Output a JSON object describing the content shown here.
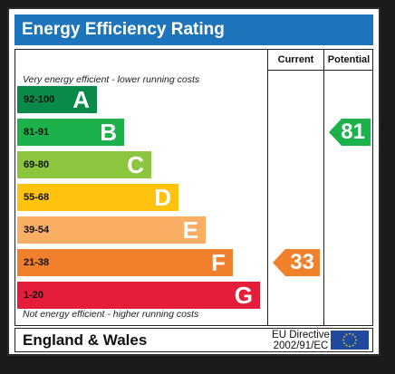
{
  "title": "Energy Efficiency Rating",
  "columns": {
    "current": "Current",
    "potential": "Potential"
  },
  "top_note": "Very energy efficient - lower running costs",
  "bottom_note": "Not energy efficient - higher running costs",
  "footer": {
    "region": "England & Wales",
    "directive_line1": "EU Directive",
    "directive_line2": "2002/91/EC"
  },
  "colors": {
    "title_bar": "#1e75bb",
    "A": "#0a8a4a",
    "B": "#1db14b",
    "C": "#8cc63f",
    "D": "#fec20f",
    "E": "#f9ae63",
    "F": "#f0802c",
    "G": "#e41e3a",
    "eu_flag": "#1f4a9e",
    "eu_stars": "#f7d117"
  },
  "chart_data": {
    "type": "bar",
    "title": "Energy Efficiency Rating",
    "categories": [
      "A",
      "B",
      "C",
      "D",
      "E",
      "F",
      "G"
    ],
    "ranges": [
      "92-100",
      "81-91",
      "69-80",
      "55-68",
      "39-54",
      "21-38",
      "1-20"
    ],
    "bands": [
      {
        "letter": "A",
        "range": "92-100"
      },
      {
        "letter": "B",
        "range": "81-91"
      },
      {
        "letter": "C",
        "range": "69-80"
      },
      {
        "letter": "D",
        "range": "55-68"
      },
      {
        "letter": "E",
        "range": "39-54"
      },
      {
        "letter": "F",
        "range": "21-38"
      },
      {
        "letter": "G",
        "range": "1-20"
      }
    ],
    "current": {
      "value": 33,
      "band": "F"
    },
    "potential": {
      "value": 81,
      "band": "B"
    }
  }
}
